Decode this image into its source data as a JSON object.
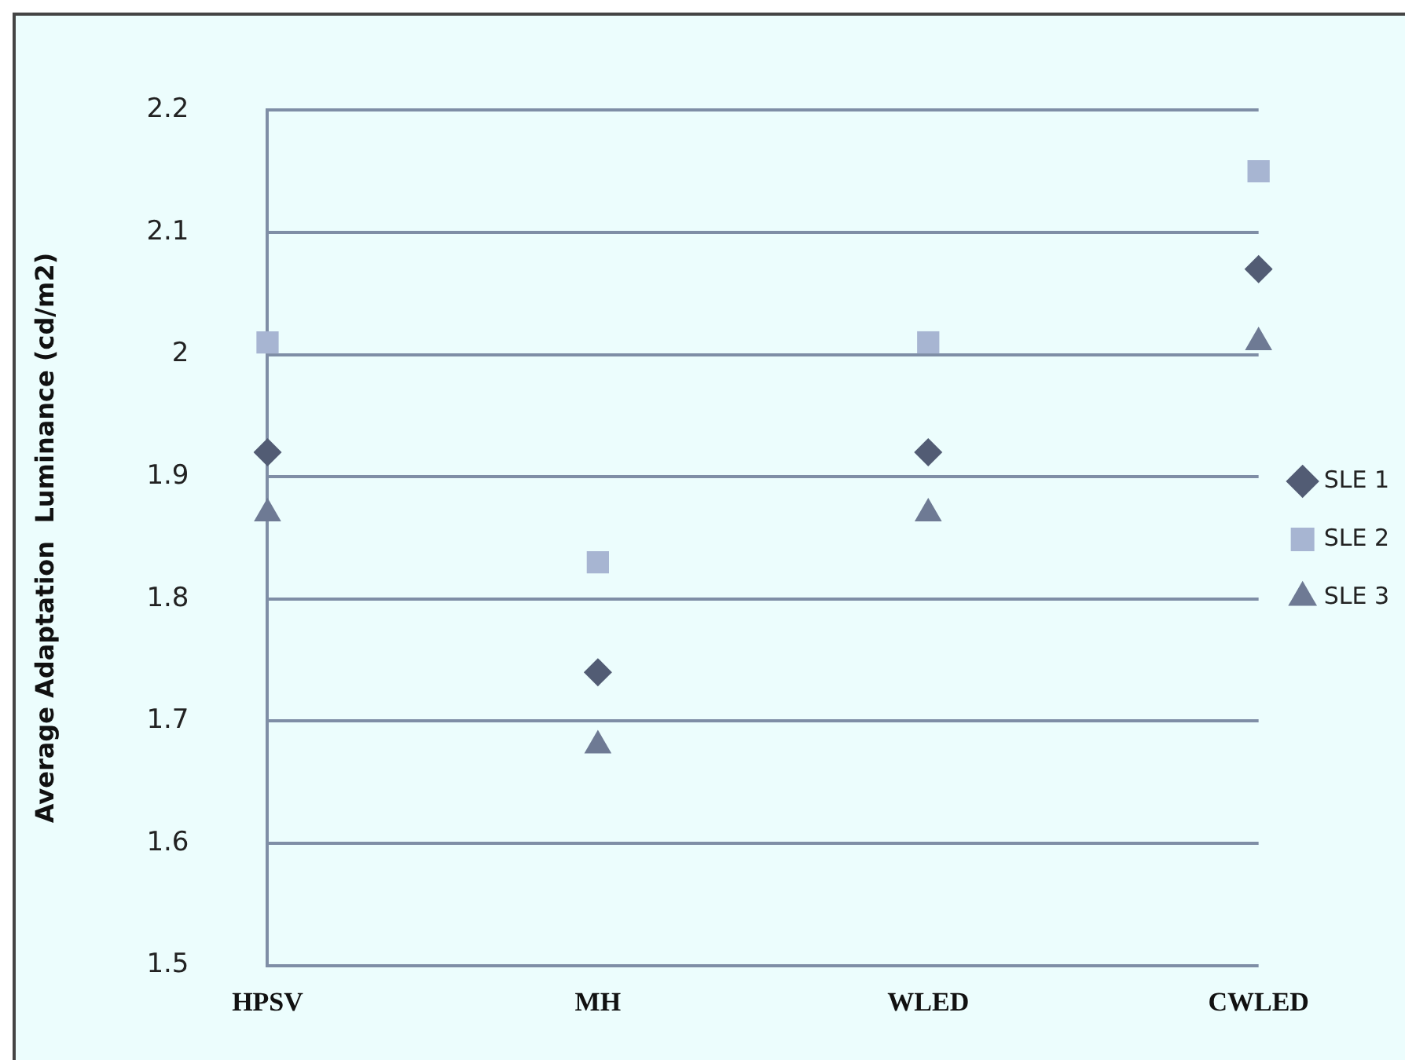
{
  "chart_data": {
    "type": "scatter",
    "ylabel": "Average Adaptation  Luminance (cd/m2)",
    "categories": [
      "HPSV",
      "MH",
      "WLED",
      "CWLED"
    ],
    "ylim": [
      1.5,
      2.2
    ],
    "yticks": [
      1.5,
      1.6,
      1.7,
      1.8,
      1.9,
      2,
      2.1,
      2.2
    ],
    "grid": "y",
    "legend": "right",
    "series": [
      {
        "name": "SLE 1",
        "color": "#525c74",
        "marker": "diamond",
        "values": [
          1.92,
          1.74,
          1.92,
          2.07
        ]
      },
      {
        "name": "SLE 2",
        "color": "#a7b5d2",
        "marker": "square",
        "values": [
          2.01,
          1.83,
          2.01,
          2.15
        ]
      },
      {
        "name": "SLE 3",
        "color": "#6e7a94",
        "marker": "triangle",
        "values": [
          1.87,
          1.68,
          1.87,
          2.01
        ]
      }
    ]
  }
}
